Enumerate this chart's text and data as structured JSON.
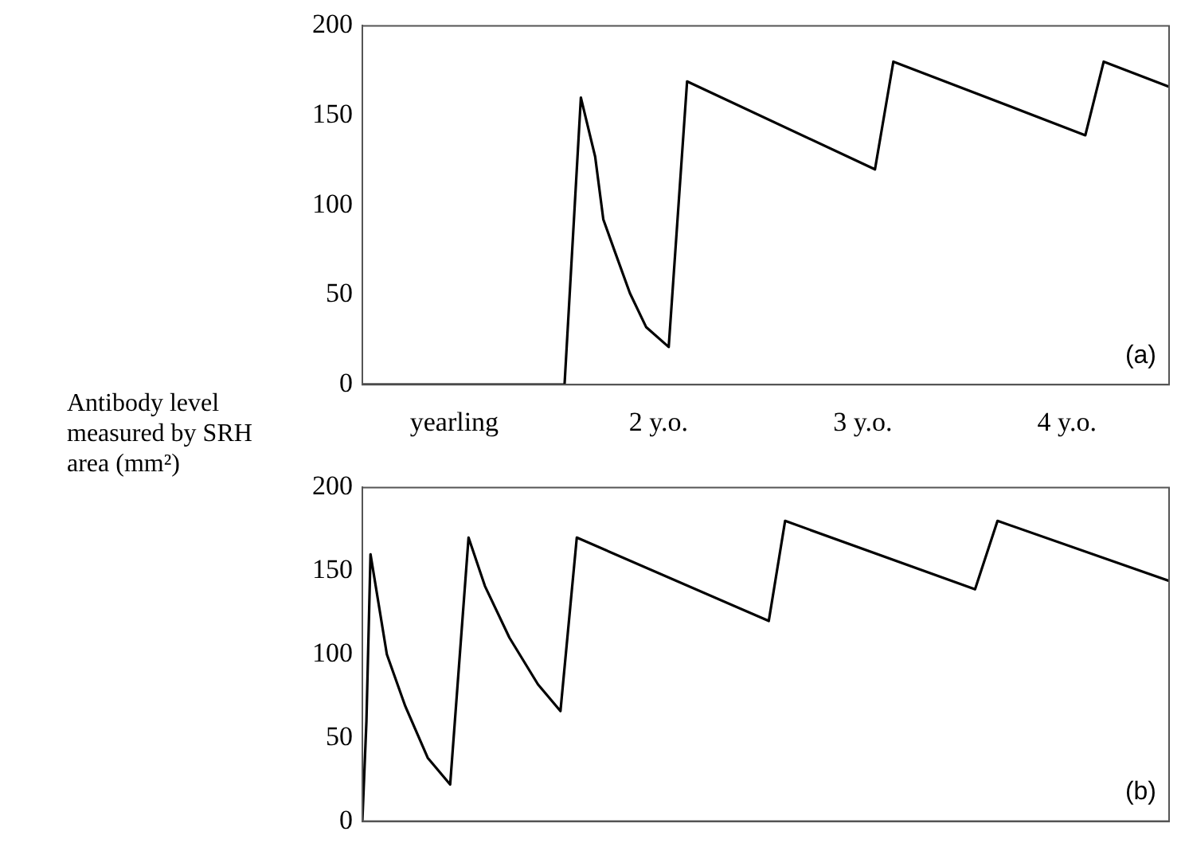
{
  "chart_data": [
    {
      "type": "line",
      "ylabel": "Antibody level measured by SRH area (mm²)",
      "annotations": [
        "(a)"
      ],
      "series": [
        {
          "color": "#000000",
          "x": [
            0.55,
            1.54,
            1.62,
            1.69,
            1.73,
            1.79,
            1.86,
            1.94,
            2.05,
            2.14,
            3.06,
            3.15,
            4.09,
            4.18,
            4.5
          ],
          "values": [
            0,
            0,
            160,
            127,
            92,
            73,
            51,
            32,
            21,
            169,
            120,
            180,
            139,
            180,
            166
          ]
        }
      ],
      "xlim": [
        0.55,
        4.5
      ],
      "xticks": [
        {
          "value": 1,
          "label": "yearling"
        },
        {
          "value": 2,
          "label": "2 y.o."
        },
        {
          "value": 3,
          "label": "3 y.o."
        },
        {
          "value": 4,
          "label": "4 y.o."
        }
      ],
      "ylim": [
        0,
        200
      ],
      "yticks": [
        0,
        50,
        100,
        150,
        200
      ],
      "grid": false,
      "legend": false,
      "marker": "none",
      "line_style": "solid"
    },
    {
      "type": "line",
      "annotations": [
        "(b)"
      ],
      "series": [
        {
          "color": "#000000",
          "x": [
            0.55,
            0.57,
            0.59,
            0.67,
            0.76,
            0.87,
            0.98,
            1.07,
            1.15,
            1.27,
            1.41,
            1.52,
            1.6,
            2.54,
            2.62,
            3.55,
            3.66,
            4.5
          ],
          "values": [
            0,
            60,
            160,
            100,
            69,
            38,
            22,
            170,
            141,
            110,
            82,
            66,
            170,
            120,
            180,
            139,
            180,
            144
          ]
        }
      ],
      "xlim": [
        0.55,
        4.5
      ],
      "ylim": [
        0,
        200
      ],
      "yticks": [
        0,
        50,
        100,
        150,
        200
      ],
      "tick_labels": "y",
      "grid": false,
      "legend": false,
      "marker": "none",
      "line_style": "solid"
    }
  ]
}
